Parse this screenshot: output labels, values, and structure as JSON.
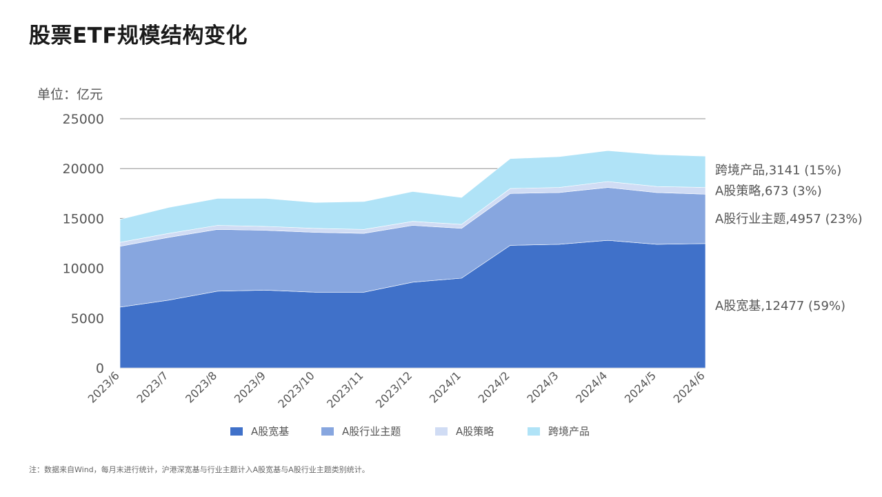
{
  "title": "股票ETF规模结构变化",
  "footnote": "注：数据来自Wind，每月末进行统计，沪港深宽基与行业主题计入A股宽基与A股行业主题类别统计。",
  "chart_data": {
    "type": "area",
    "stacked": true,
    "unit_label": "单位：亿元",
    "ylim": [
      0,
      25000
    ],
    "yticks": [
      "0",
      "5000",
      "10000",
      "15000",
      "20000",
      "25000"
    ],
    "grid": true,
    "legend_position": "bottom",
    "x": [
      "2023/6",
      "2023/7",
      "2023/8",
      "2023/9",
      "2023/10",
      "2023/11",
      "2023/12",
      "2024/1",
      "2024/2",
      "2024/3",
      "2024/4",
      "2024/5",
      "2024/6"
    ],
    "series": [
      {
        "name": "A股宽基",
        "color": "#4071c9",
        "values": [
          6100,
          6800,
          7700,
          7800,
          7600,
          7600,
          8600,
          9000,
          12300,
          12400,
          12800,
          12400,
          12477
        ],
        "end_label": "A股宽基,12477 (59%)"
      },
      {
        "name": "A股行业主题",
        "color": "#87a6df",
        "values": [
          6100,
          6300,
          6200,
          6000,
          6000,
          5900,
          5700,
          5000,
          5200,
          5200,
          5300,
          5200,
          4957
        ],
        "end_label": "A股行业主题,4957 (23%)"
      },
      {
        "name": "A股策略",
        "color": "#d0dcf4",
        "values": [
          400,
          400,
          400,
          400,
          400,
          400,
          400,
          400,
          500,
          500,
          600,
          600,
          673
        ],
        "end_label": "A股策略,673 (3%)"
      },
      {
        "name": "跨境产品",
        "color": "#b0e3f7",
        "values": [
          2300,
          2600,
          2700,
          2800,
          2600,
          2800,
          3000,
          2700,
          3000,
          3100,
          3100,
          3200,
          3141
        ],
        "end_label": "跨境产品,3141 (15%)"
      }
    ]
  }
}
